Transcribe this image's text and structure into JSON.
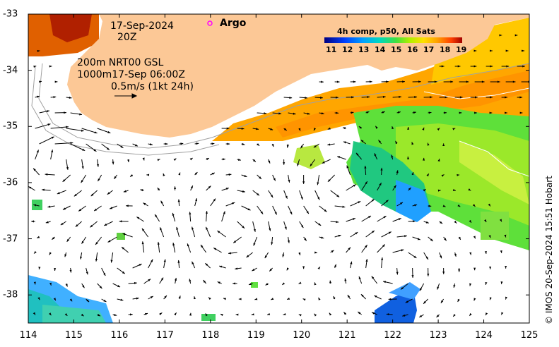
{
  "map": {
    "date": "17-Sep-2024",
    "time": "20Z",
    "legend_argo": "Argo",
    "contour_label_line1": "200m  NRT00 GSL",
    "contour_label_line2": "1000m17-Sep 06:00Z",
    "vector_scale_label": "0.5m/s (1kt 24h)",
    "colorbar_title": "4h comp, p50, All Sats",
    "colorbar_ticks": [
      "11",
      "12",
      "13",
      "14",
      "15",
      "16",
      "17",
      "18",
      "19"
    ],
    "colorbar_colors": [
      "#000080",
      "#0040ff",
      "#00a0ff",
      "#00e0c0",
      "#40e040",
      "#b0f000",
      "#ffe000",
      "#ffa000",
      "#ff4000",
      "#c00000"
    ],
    "land_color": "#fcc896",
    "x_ticks": [
      "114",
      "115",
      "116",
      "117",
      "118",
      "119",
      "120",
      "121",
      "122",
      "123",
      "124",
      "125"
    ],
    "y_ticks": [
      "-33",
      "-34",
      "-35",
      "-36",
      "-37",
      "-38"
    ],
    "x_range_lon": [
      114,
      125
    ],
    "y_range_lat": [
      -38.5,
      -33
    ],
    "credit": "© IMOS 20-Sep-2024 15:51 Hobart",
    "argo_float": {
      "lon": 118.0,
      "lat": -33.2
    }
  }
}
